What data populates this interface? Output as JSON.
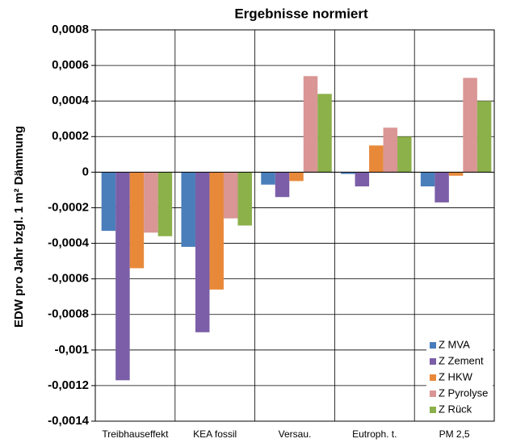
{
  "chart_data": {
    "type": "bar",
    "title": "Ergebnisse normiert",
    "y_label": "EDW pro Jahr bzgl. 1 m² Dämmung",
    "categories": [
      "Treibhauseffekt",
      "KEA fossil",
      "Versau.",
      "Eutroph. t.",
      "PM 2,5"
    ],
    "series": [
      {
        "name": "Z MVA",
        "color": "#4a7ebb",
        "values": [
          -0.00033,
          -0.00042,
          -7e-05,
          -1e-05,
          -8e-05
        ]
      },
      {
        "name": "Z Zement",
        "color": "#7b5ea7",
        "values": [
          -0.00117,
          -0.0009,
          -0.00014,
          -8e-05,
          -0.00017
        ]
      },
      {
        "name": "Z HKW",
        "color": "#e8893a",
        "values": [
          -0.00054,
          -0.00066,
          -5e-05,
          0.00015,
          -2e-05
        ]
      },
      {
        "name": "Z Pyrolyse",
        "color": "#d99694",
        "values": [
          -0.00034,
          -0.00026,
          0.00054,
          0.00025,
          0.00053
        ]
      },
      {
        "name": "Z Rück",
        "color": "#8cb04a",
        "values": [
          -0.00036,
          -0.0003,
          0.00044,
          0.0002,
          0.0004
        ]
      }
    ],
    "ylim": [
      -0.0014,
      0.0008
    ],
    "yticks": [
      {
        "value": -0.0014,
        "label": "-0,0014"
      },
      {
        "value": -0.0012,
        "label": "-0,0012"
      },
      {
        "value": -0.001,
        "label": "-0,001"
      },
      {
        "value": -0.0008,
        "label": "-0,0008"
      },
      {
        "value": -0.0006,
        "label": "-0,0006"
      },
      {
        "value": -0.0004,
        "label": "-0,0004"
      },
      {
        "value": -0.0002,
        "label": "-0,0002"
      },
      0,
      {
        "value": 0.0002,
        "label": "0,0002"
      },
      {
        "value": 0.0004,
        "label": "0,0004"
      },
      {
        "value": 0.0006,
        "label": "0,0006"
      },
      {
        "value": 0.0008,
        "label": "0,0008"
      }
    ],
    "legend": "lower right",
    "grid": true
  }
}
